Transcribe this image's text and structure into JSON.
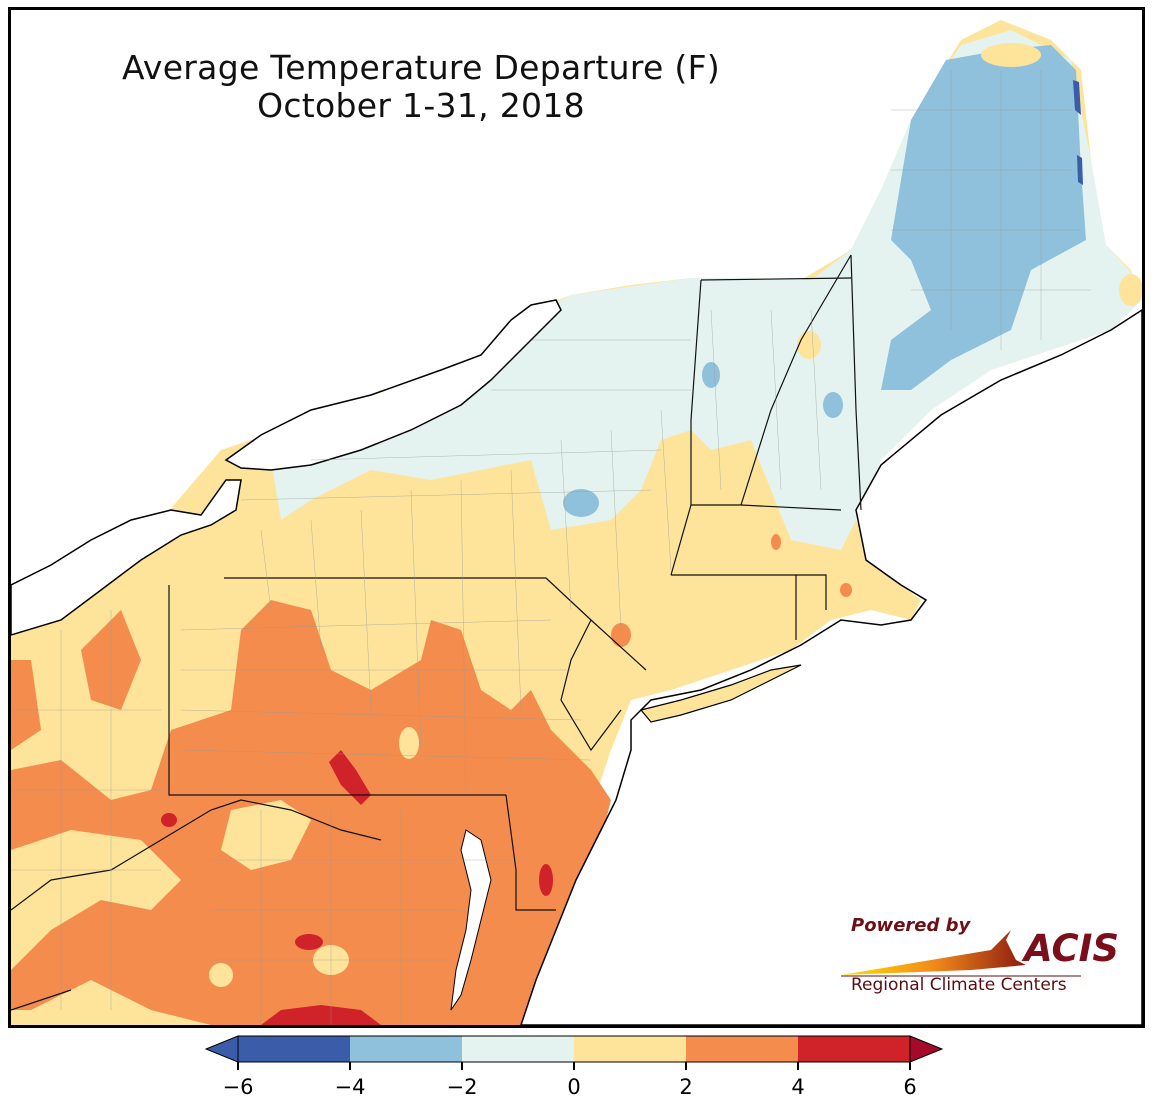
{
  "title": {
    "line1": "Average Temperature Departure (F)",
    "line2": "October 1-31, 2018"
  },
  "logo": {
    "powered_by": "Powered by",
    "acis": "ACIS",
    "subtitle": "Regional Climate Centers"
  },
  "colorbar": {
    "ticks": [
      "−6",
      "−4",
      "−2",
      "0",
      "2",
      "4",
      "6"
    ],
    "bins": [
      {
        "range": "-6 to -4",
        "color": "#3b5ca8"
      },
      {
        "range": "-4 to -2",
        "color": "#8fc0dc"
      },
      {
        "range": "-2 to 0",
        "color": "#e4f3ef"
      },
      {
        "range": "0 to 2",
        "color": "#fde49a"
      },
      {
        "range": "2 to 4",
        "color": "#f48c4e"
      },
      {
        "range": "4 to 6",
        "color": "#cf2229"
      }
    ],
    "under_color": "#3b5ca8",
    "over_color": "#a50a2a"
  },
  "map": {
    "region": "Northeast United States",
    "colors": {
      "water": "#ffffff",
      "light_blue": "#e4f3ef",
      "mid_blue": "#8fc0dc",
      "dark_blue": "#3b5ca8",
      "yellow": "#fde49a",
      "orange": "#f48c4e",
      "red": "#cf2229"
    }
  }
}
